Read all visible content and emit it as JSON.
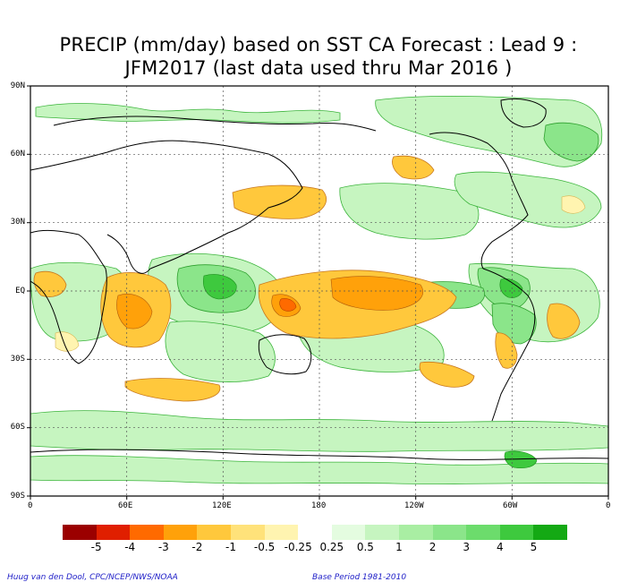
{
  "title": {
    "line1": "PRECIP (mm/day) based on SST CA Forecast : Lead 9 :",
    "line2": "JFM2017 (last data used thru Mar 2016 )"
  },
  "axes": {
    "lat_labels": [
      "90N",
      "60N",
      "30N",
      "EQ",
      "30S",
      "60S",
      "90S"
    ],
    "lon_labels": [
      "0",
      "60E",
      "120E",
      "180",
      "120W",
      "60W",
      "0"
    ]
  },
  "colorbar": {
    "colors": [
      "#9b0000",
      "#e01f00",
      "#ff6a00",
      "#ffa10a",
      "#ffc83c",
      "#ffe27a",
      "#fff4b0",
      "#ffffff",
      "#e4fce0",
      "#c6f5c0",
      "#a9eea3",
      "#8be58a",
      "#6cdc6c",
      "#3ec93e",
      "#14a914"
    ],
    "labels": [
      "-5",
      "-4",
      "-3",
      "-2",
      "-1",
      "-0.5",
      "-0.25",
      "0.25",
      "0.5",
      "1",
      "2",
      "3",
      "4",
      "5"
    ]
  },
  "footer": {
    "left": "Huug van den Dool, CPC/NCEP/NWS/NOAA",
    "right": "Base Period 1981-2010"
  }
}
